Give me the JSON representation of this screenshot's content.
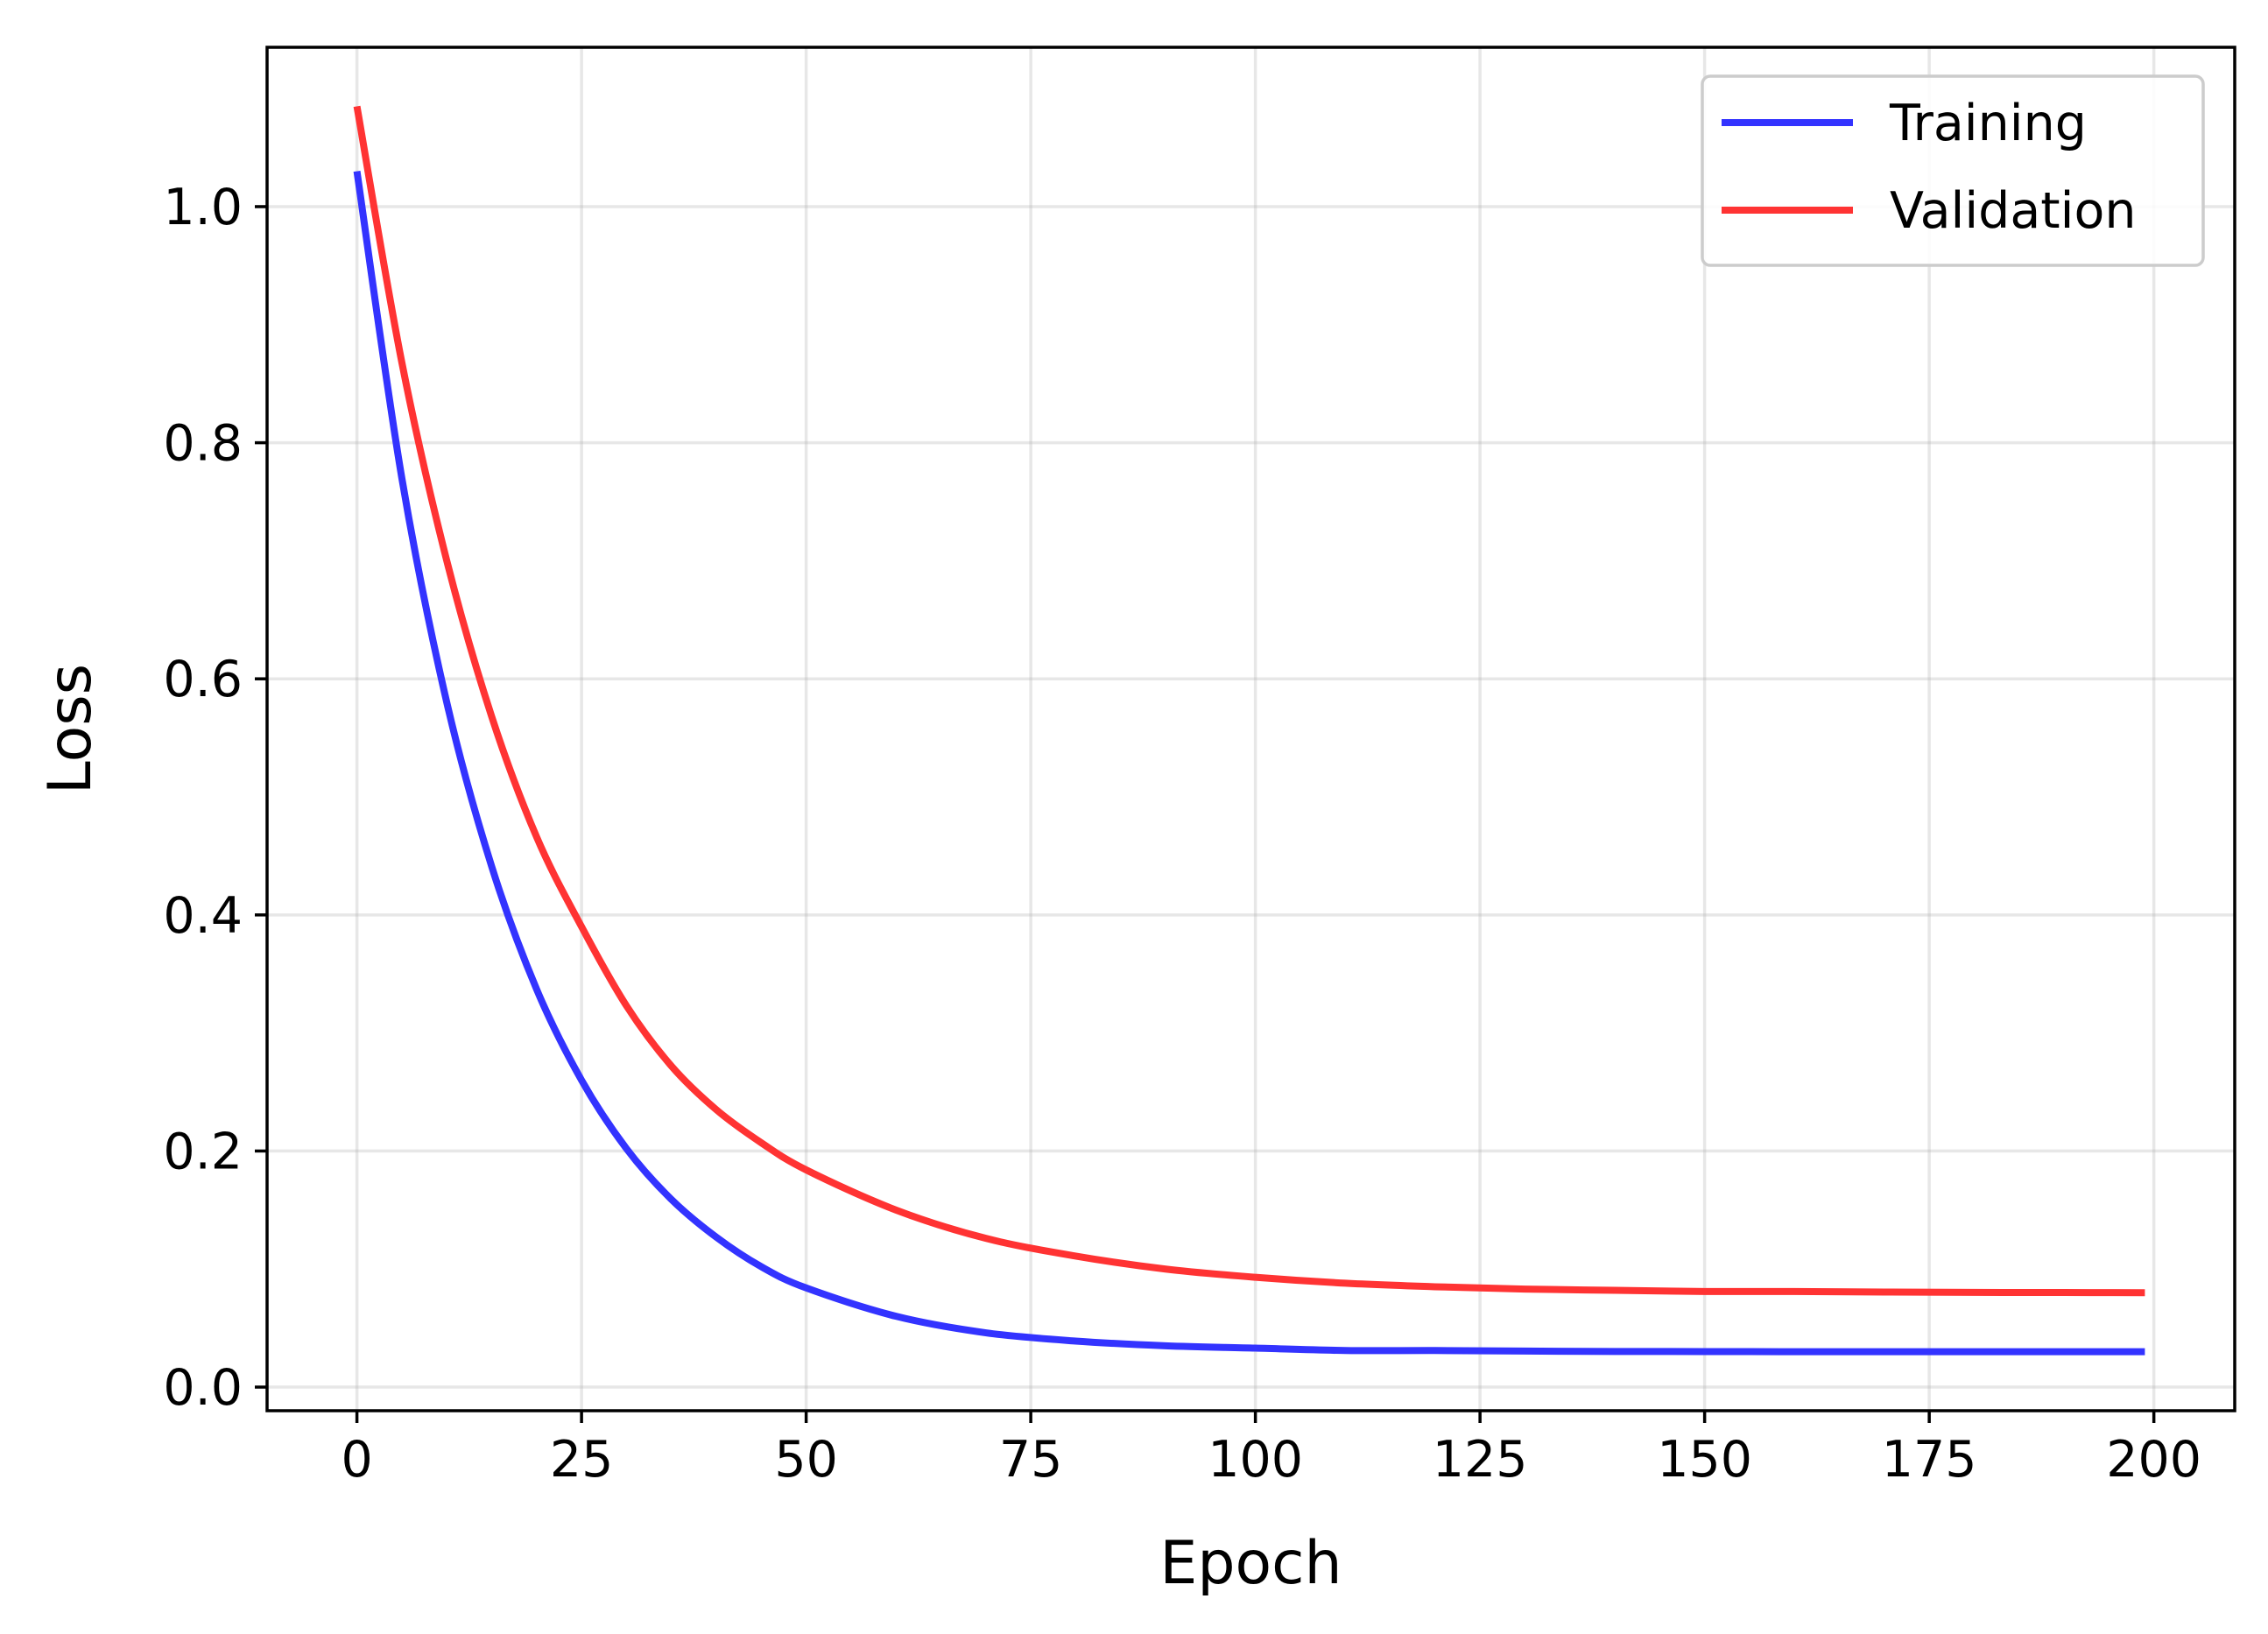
{
  "chart_data": {
    "type": "line",
    "title": "",
    "xlabel": "Epoch",
    "ylabel": "Loss",
    "xlim": [
      -10,
      209
    ],
    "ylim": [
      -0.02,
      1.135
    ],
    "xticks": [
      0,
      25,
      50,
      75,
      100,
      125,
      150,
      175,
      200
    ],
    "xtick_labels": [
      "0",
      "25",
      "50",
      "75",
      "100",
      "125",
      "150",
      "175",
      "200"
    ],
    "yticks": [
      0.0,
      0.2,
      0.4,
      0.6,
      0.8,
      1.0
    ],
    "ytick_labels": [
      "0.0",
      "0.2",
      "0.4",
      "0.6",
      "0.8",
      "1.0"
    ],
    "grid": true,
    "legend_position": "top-right",
    "x": [
      0,
      5,
      10,
      15,
      20,
      25,
      30,
      35,
      40,
      45,
      50,
      60,
      70,
      80,
      90,
      100,
      110,
      120,
      130,
      140,
      150,
      160,
      170,
      180,
      190,
      199
    ],
    "series": [
      {
        "name": "Training",
        "color": "#3333ff",
        "values": [
          1.03,
          0.77,
          0.58,
          0.441,
          0.337,
          0.26,
          0.202,
          0.159,
          0.127,
          0.102,
          0.084,
          0.06,
          0.046,
          0.039,
          0.035,
          0.033,
          0.031,
          0.031,
          0.0305,
          0.0302,
          0.0301,
          0.03,
          0.03,
          0.03,
          0.03,
          0.03
        ]
      },
      {
        "name": "Validation",
        "color": "#ff3333",
        "values": [
          1.085,
          0.868,
          0.7,
          0.568,
          0.466,
          0.39,
          0.323,
          0.272,
          0.235,
          0.207,
          0.184,
          0.15,
          0.126,
          0.111,
          0.1,
          0.093,
          0.088,
          0.085,
          0.083,
          0.082,
          0.081,
          0.081,
          0.0805,
          0.0802,
          0.0801,
          0.08
        ]
      }
    ]
  }
}
